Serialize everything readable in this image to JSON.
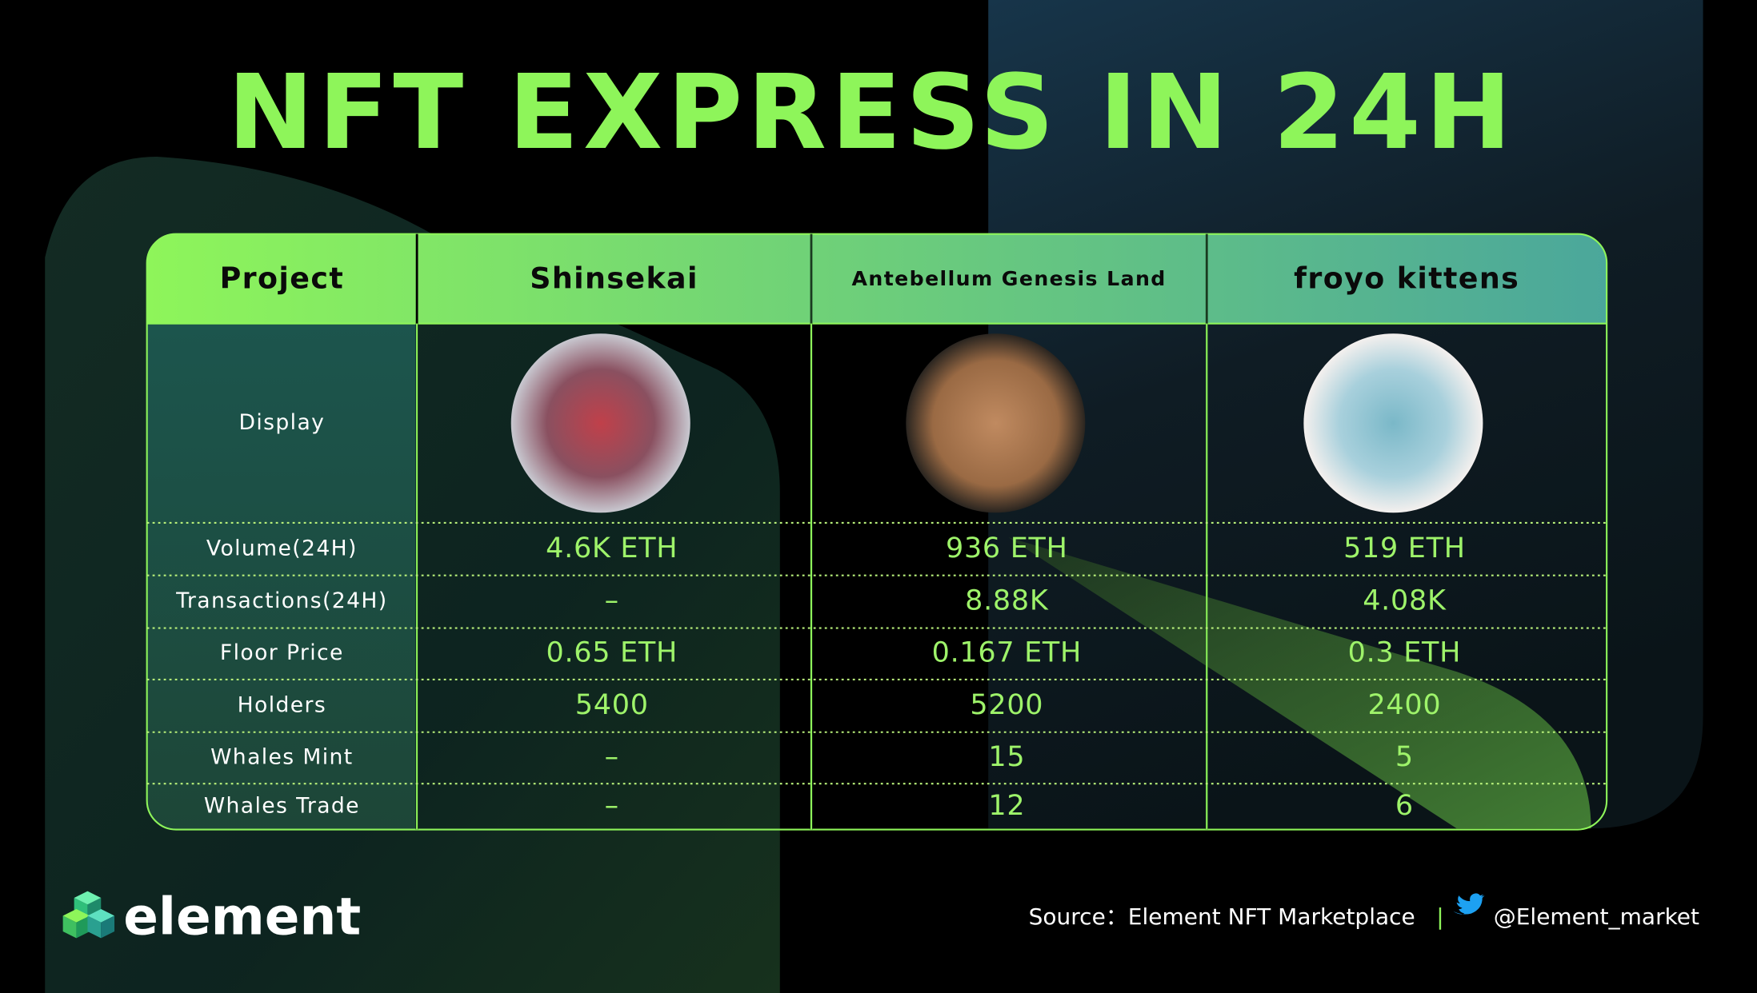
{
  "title": "NFT EXPRESS IN 24H",
  "table": {
    "header": [
      "Project",
      "Shinsekai",
      "Antebellum Genesis Land",
      "froyo kittens"
    ],
    "rows": [
      [
        "Display"
      ],
      [
        "Volume(24H)",
        "4.6K ETH",
        "936 ETH",
        "519 ETH"
      ],
      [
        "Transactions(24H)",
        "–",
        "8.88K",
        "4.08K"
      ],
      [
        "Floor Price",
        "0.65 ETH",
        "0.167 ETH",
        "0.3 ETH"
      ],
      [
        "Holders",
        "5400",
        "5200",
        "2400"
      ],
      [
        "Whales Mint",
        "–",
        "15",
        "5"
      ],
      [
        "Whales Trade",
        "–",
        "12",
        "6"
      ]
    ]
  },
  "footer": {
    "brand": "element",
    "source": "Source：Element NFT Marketplace",
    "separator": "|",
    "twitter": "@Element_market"
  }
}
